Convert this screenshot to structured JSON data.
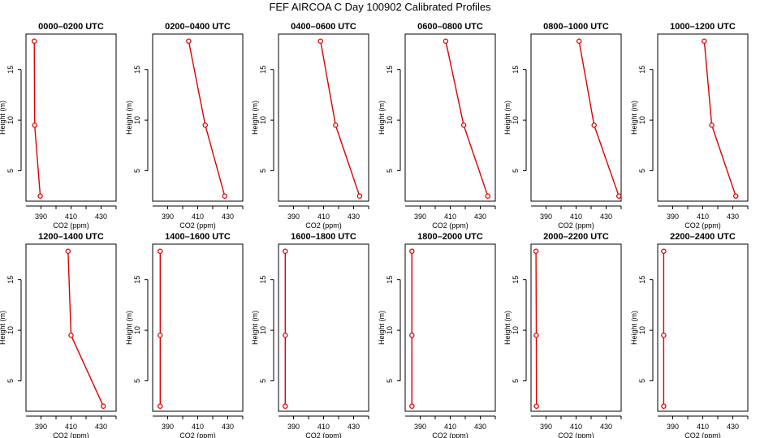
{
  "figure": {
    "title": "FEF AIRCOA C  Day 100902  Calibrated Profiles"
  },
  "style": {
    "line_color": "#dd0000",
    "marker_color": "#dd0000",
    "axis_color": "#000000"
  },
  "chart_data": [
    {
      "type": "line",
      "title": "0000–0200 UTC",
      "xlabel": "CO2 (ppm)",
      "ylabel": "Height (m)",
      "x": [
        385.5,
        385.8,
        389.5
      ],
      "y": [
        17.8,
        9.5,
        2.5
      ],
      "xlim": [
        380,
        440
      ],
      "ylim": [
        2,
        18.5
      ],
      "xticks": [
        390,
        410,
        430
      ],
      "yticks": [
        5,
        10,
        15
      ]
    },
    {
      "type": "line",
      "title": "0200–0400 UTC",
      "xlabel": "CO2 (ppm)",
      "ylabel": "Height (m)",
      "x": [
        404,
        415,
        428
      ],
      "y": [
        17.8,
        9.5,
        2.5
      ],
      "xlim": [
        380,
        440
      ],
      "ylim": [
        2,
        18.5
      ],
      "xticks": [
        390,
        410,
        430
      ],
      "yticks": [
        5,
        10,
        15
      ]
    },
    {
      "type": "line",
      "title": "0400–0600 UTC",
      "xlabel": "CO2 (ppm)",
      "ylabel": "Height (m)",
      "x": [
        408,
        418,
        434
      ],
      "y": [
        17.8,
        9.5,
        2.5
      ],
      "xlim": [
        380,
        440
      ],
      "ylim": [
        2,
        18.5
      ],
      "xticks": [
        390,
        410,
        430
      ],
      "yticks": [
        5,
        10,
        15
      ]
    },
    {
      "type": "line",
      "title": "0600–0800 UTC",
      "xlabel": "CO2 (ppm)",
      "ylabel": "Height (m)",
      "x": [
        407,
        419,
        435
      ],
      "y": [
        17.8,
        9.5,
        2.5
      ],
      "xlim": [
        380,
        440
      ],
      "ylim": [
        2,
        18.5
      ],
      "xticks": [
        390,
        410,
        430
      ],
      "yticks": [
        5,
        10,
        15
      ]
    },
    {
      "type": "line",
      "title": "0800–1000 UTC",
      "xlabel": "CO2 (ppm)",
      "ylabel": "Height (m)",
      "x": [
        412,
        422,
        438.5
      ],
      "y": [
        17.8,
        9.5,
        2.5
      ],
      "xlim": [
        380,
        440
      ],
      "ylim": [
        2,
        18.5
      ],
      "xticks": [
        390,
        410,
        430
      ],
      "yticks": [
        5,
        10,
        15
      ]
    },
    {
      "type": "line",
      "title": "1000–1200 UTC",
      "xlabel": "CO2 (ppm)",
      "ylabel": "Height (m)",
      "x": [
        411,
        416,
        432
      ],
      "y": [
        17.8,
        9.5,
        2.5
      ],
      "xlim": [
        380,
        440
      ],
      "ylim": [
        2,
        18.5
      ],
      "xticks": [
        390,
        410,
        430
      ],
      "yticks": [
        5,
        10,
        15
      ]
    },
    {
      "type": "line",
      "title": "1200–1400 UTC",
      "xlabel": "CO2 (ppm)",
      "ylabel": "Height (m)",
      "x": [
        408,
        410,
        431.5
      ],
      "y": [
        17.8,
        9.5,
        2.5
      ],
      "xlim": [
        380,
        440
      ],
      "ylim": [
        2,
        18.5
      ],
      "xticks": [
        390,
        410,
        430
      ],
      "yticks": [
        5,
        10,
        15
      ]
    },
    {
      "type": "line",
      "title": "1400–1600 UTC",
      "xlabel": "CO2 (ppm)",
      "ylabel": "Height (m)",
      "x": [
        385,
        385,
        385
      ],
      "y": [
        17.8,
        9.5,
        2.5
      ],
      "xlim": [
        380,
        440
      ],
      "ylim": [
        2,
        18.5
      ],
      "xticks": [
        390,
        410,
        430
      ],
      "yticks": [
        5,
        10,
        15
      ]
    },
    {
      "type": "line",
      "title": "1600–1800 UTC",
      "xlabel": "CO2 (ppm)",
      "ylabel": "Height (m)",
      "x": [
        384.5,
        384.5,
        384.5
      ],
      "y": [
        17.8,
        9.5,
        2.5
      ],
      "xlim": [
        380,
        440
      ],
      "ylim": [
        2,
        18.5
      ],
      "xticks": [
        390,
        410,
        430
      ],
      "yticks": [
        5,
        10,
        15
      ]
    },
    {
      "type": "line",
      "title": "1800–2000 UTC",
      "xlabel": "CO2 (ppm)",
      "ylabel": "Height (m)",
      "x": [
        384.5,
        384.5,
        384.5
      ],
      "y": [
        17.8,
        9.5,
        2.5
      ],
      "xlim": [
        380,
        440
      ],
      "ylim": [
        2,
        18.5
      ],
      "xticks": [
        390,
        410,
        430
      ],
      "yticks": [
        5,
        10,
        15
      ]
    },
    {
      "type": "line",
      "title": "2000–2200 UTC",
      "xlabel": "CO2 (ppm)",
      "ylabel": "Height (m)",
      "x": [
        383.3,
        383.5,
        383.6
      ],
      "y": [
        17.8,
        9.5,
        2.5
      ],
      "xlim": [
        380,
        440
      ],
      "ylim": [
        2,
        18.5
      ],
      "xticks": [
        390,
        410,
        430
      ],
      "yticks": [
        5,
        10,
        15
      ]
    },
    {
      "type": "line",
      "title": "2200–2400 UTC",
      "xlabel": "CO2 (ppm)",
      "ylabel": "Height (m)",
      "x": [
        384,
        384,
        384
      ],
      "y": [
        17.8,
        9.5,
        2.5
      ],
      "xlim": [
        380,
        440
      ],
      "ylim": [
        2,
        18.5
      ],
      "xticks": [
        390,
        410,
        430
      ],
      "yticks": [
        5,
        10,
        15
      ]
    }
  ]
}
